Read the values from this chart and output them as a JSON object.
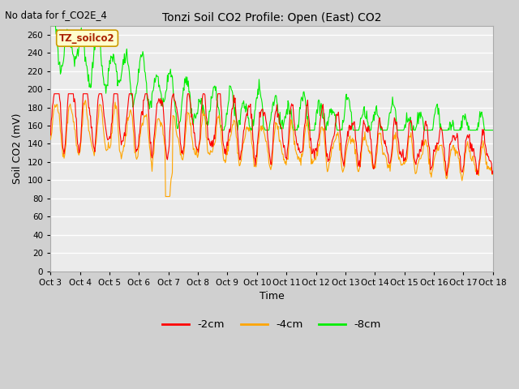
{
  "title": "Tonzi Soil CO2 Profile: Open (East) CO2",
  "subtitle": "No data for f_CO2E_4",
  "ylabel": "Soil CO2 (mV)",
  "xlabel": "Time",
  "legend_label": "TZ_soilco2",
  "legend_entries": [
    "-2cm",
    "-4cm",
    "-8cm"
  ],
  "line_colors": [
    "#ff0000",
    "#ffa500",
    "#00ee00"
  ],
  "ylim": [
    0,
    270
  ],
  "yticks": [
    0,
    20,
    40,
    60,
    80,
    100,
    120,
    140,
    160,
    180,
    200,
    220,
    240,
    260
  ],
  "xtick_labels": [
    "Oct 3",
    "Oct 4",
    "Oct 5",
    "Oct 6",
    "Oct 7",
    "Oct 8",
    "Oct 9",
    "Oct 10",
    "Oct 11",
    "Oct 12",
    "Oct 13",
    "Oct 14",
    "Oct 15",
    "Oct 16",
    "Oct 17",
    "Oct 18"
  ],
  "fig_bg_color": "#d0d0d0",
  "plot_bg_color": "#ebebeb",
  "grid_color": "#ffffff",
  "n_points": 720
}
